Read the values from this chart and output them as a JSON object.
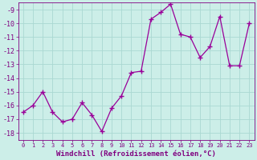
{
  "x": [
    0,
    1,
    2,
    3,
    4,
    5,
    6,
    7,
    8,
    9,
    10,
    11,
    12,
    13,
    14,
    15,
    16,
    17,
    18,
    19,
    20,
    21,
    22,
    23
  ],
  "y": [
    -16.5,
    -16.0,
    -15.0,
    -16.5,
    -17.2,
    -17.0,
    -15.8,
    -16.7,
    -17.9,
    -16.2,
    -15.3,
    -13.6,
    -13.5,
    -9.7,
    -9.2,
    -8.6,
    -10.8,
    -11.0,
    -12.5,
    -11.7,
    -9.5,
    -13.1,
    -13.1,
    -10.0
  ],
  "line_color": "#990099",
  "marker": "+",
  "marker_size": 4,
  "linewidth": 0.9,
  "xlabel": "Windchill (Refroidissement éolien,°C)",
  "xlabel_fontsize": 6.5,
  "ylim": [
    -18.5,
    -8.5
  ],
  "yticks": [
    -18,
    -17,
    -16,
    -15,
    -14,
    -13,
    -12,
    -11,
    -10,
    -9
  ],
  "xticks": [
    0,
    1,
    2,
    3,
    4,
    5,
    6,
    7,
    8,
    9,
    10,
    11,
    12,
    13,
    14,
    15,
    16,
    17,
    18,
    19,
    20,
    21,
    22,
    23
  ],
  "xtick_labels": [
    "0",
    "1",
    "2",
    "3",
    "4",
    "5",
    "6",
    "7",
    "8",
    "9",
    "10",
    "11",
    "12",
    "13",
    "14",
    "15",
    "16",
    "17",
    "18",
    "19",
    "20",
    "21",
    "22",
    "23"
  ],
  "bg_color": "#cceee8",
  "grid_color": "#aad8d2",
  "tick_color": "#800080",
  "label_color": "#800080",
  "ytick_fontsize": 6.0,
  "xtick_fontsize": 5.0
}
